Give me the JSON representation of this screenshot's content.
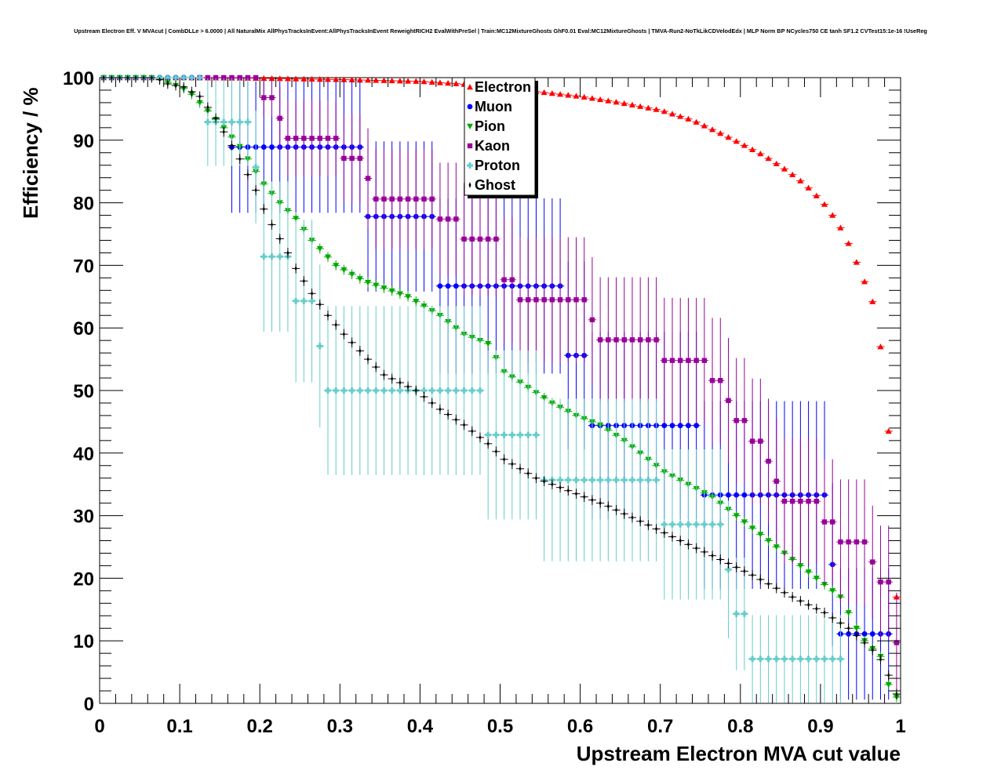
{
  "chart_data": {
    "type": "scatter",
    "title": "Upstream Electron Eff. V MVAcut | CombDLLe > 6.0000 | All NaturalMix AllPhysTracksInEvent:AllPhysTracksInEvent ReweightRICH2 EvalWithPreSel | Train:MC12MixtureGhosts GhF0.01 Eval:MC12MixtureGhosts | TMVA-Run2-NoTkLikCDVelodEdx | MLP Norm BP NCycles750 CE tanh SF1.2 CVTest15:1e-16 !UseReg",
    "xlabel": "Upstream Electron MVA cut value",
    "ylabel": "Efficiency / %",
    "xlim": [
      0,
      1
    ],
    "ylim": [
      0,
      100
    ],
    "xticks": [
      "0",
      "0.1",
      "0.2",
      "0.3",
      "0.4",
      "0.5",
      "0.6",
      "0.7",
      "0.8",
      "0.9",
      "1"
    ],
    "yticks": [
      "0",
      "10",
      "20",
      "30",
      "40",
      "50",
      "60",
      "70",
      "80",
      "90",
      "100"
    ],
    "legend_position": "top-center",
    "series": [
      {
        "name": "Electron",
        "color": "#ff0000",
        "marker": "triangle-up",
        "kind": "points",
        "err": 0.3,
        "points": [
          [
            0.005,
            100
          ],
          [
            0.1,
            100
          ],
          [
            0.2,
            99.9
          ],
          [
            0.3,
            99.7
          ],
          [
            0.4,
            99.4
          ],
          [
            0.45,
            99
          ],
          [
            0.5,
            98.3
          ],
          [
            0.55,
            97.7
          ],
          [
            0.6,
            97
          ],
          [
            0.65,
            96
          ],
          [
            0.7,
            94.8
          ],
          [
            0.74,
            93.2
          ],
          [
            0.78,
            90.8
          ],
          [
            0.8,
            89.5
          ],
          [
            0.83,
            87.5
          ],
          [
            0.86,
            85
          ],
          [
            0.88,
            83
          ],
          [
            0.9,
            80.5
          ],
          [
            0.91,
            79
          ],
          [
            0.92,
            77
          ],
          [
            0.93,
            75
          ],
          [
            0.94,
            72
          ],
          [
            0.95,
            69
          ],
          [
            0.965,
            64.2
          ],
          [
            0.975,
            57
          ],
          [
            0.985,
            43.5
          ],
          [
            0.995,
            17
          ]
        ]
      },
      {
        "name": "Muon",
        "color": "#0000ff",
        "marker": "circle",
        "kind": "steps",
        "steps": [
          [
            0.005,
            0.12,
            100,
            0.5
          ],
          [
            0.165,
            0.33,
            88.9,
            10.5
          ],
          [
            0.335,
            0.42,
            77.8,
            12
          ],
          [
            0.425,
            0.58,
            66.7,
            14
          ],
          [
            0.585,
            0.61,
            55.6,
            15
          ],
          [
            0.615,
            0.75,
            44.4,
            15
          ],
          [
            0.755,
            0.91,
            33.3,
            15
          ],
          [
            0.915,
            0.92,
            22.2,
            13
          ],
          [
            0.925,
            0.99,
            11.1,
            10.5
          ]
        ]
      },
      {
        "name": "Pion",
        "color": "#00aa00",
        "marker": "triangle-down",
        "kind": "points",
        "err": 0.8,
        "points": [
          [
            0.005,
            100
          ],
          [
            0.07,
            100
          ],
          [
            0.09,
            99
          ],
          [
            0.11,
            98
          ],
          [
            0.125,
            96
          ],
          [
            0.155,
            92
          ],
          [
            0.175,
            89
          ],
          [
            0.205,
            83
          ],
          [
            0.225,
            80
          ],
          [
            0.245,
            77.5
          ],
          [
            0.265,
            74
          ],
          [
            0.295,
            70
          ],
          [
            0.33,
            67.5
          ],
          [
            0.385,
            65
          ],
          [
            0.425,
            62
          ],
          [
            0.455,
            59
          ],
          [
            0.485,
            57.5
          ],
          [
            0.505,
            53
          ],
          [
            0.535,
            50.5
          ],
          [
            0.565,
            48
          ],
          [
            0.595,
            46
          ],
          [
            0.625,
            44.5
          ],
          [
            0.655,
            42
          ],
          [
            0.685,
            39
          ],
          [
            0.705,
            37
          ],
          [
            0.735,
            35
          ],
          [
            0.765,
            33
          ],
          [
            0.785,
            31
          ],
          [
            0.815,
            28
          ],
          [
            0.845,
            25
          ],
          [
            0.875,
            22
          ],
          [
            0.905,
            19
          ],
          [
            0.925,
            17
          ],
          [
            0.945,
            12
          ],
          [
            0.955,
            10
          ],
          [
            0.975,
            7.5
          ],
          [
            0.985,
            3
          ],
          [
            0.995,
            1
          ]
        ]
      },
      {
        "name": "Kaon",
        "color": "#990099",
        "marker": "square",
        "kind": "steps",
        "steps": [
          [
            0.125,
            0.195,
            100,
            0.5
          ],
          [
            0.205,
            0.215,
            96.8,
            3
          ],
          [
            0.225,
            0.225,
            93.5,
            5
          ],
          [
            0.235,
            0.295,
            90.3,
            6
          ],
          [
            0.305,
            0.325,
            87.1,
            7
          ],
          [
            0.335,
            0.335,
            83.9,
            8
          ],
          [
            0.345,
            0.415,
            80.6,
            8
          ],
          [
            0.425,
            0.445,
            77.4,
            9
          ],
          [
            0.455,
            0.495,
            74.2,
            9
          ],
          [
            0.505,
            0.515,
            67.7,
            10
          ],
          [
            0.525,
            0.605,
            64.5,
            10
          ],
          [
            0.615,
            0.615,
            61.3,
            10
          ],
          [
            0.625,
            0.695,
            58.1,
            10
          ],
          [
            0.705,
            0.755,
            54.8,
            10
          ],
          [
            0.765,
            0.775,
            51.6,
            10
          ],
          [
            0.785,
            0.785,
            48.4,
            10
          ],
          [
            0.795,
            0.805,
            45.2,
            10
          ],
          [
            0.815,
            0.825,
            41.9,
            10
          ],
          [
            0.835,
            0.835,
            38.7,
            10
          ],
          [
            0.845,
            0.845,
            35.5,
            10
          ],
          [
            0.855,
            0.895,
            32.3,
            10
          ],
          [
            0.905,
            0.915,
            29,
            10
          ],
          [
            0.925,
            0.955,
            25.8,
            10
          ],
          [
            0.965,
            0.965,
            22.6,
            9
          ],
          [
            0.975,
            0.985,
            19.4,
            9
          ],
          [
            0.995,
            0.995,
            9.7,
            8
          ]
        ]
      },
      {
        "name": "Proton",
        "color": "#66cccc",
        "marker": "cross",
        "kind": "steps",
        "steps": [
          [
            0.005,
            0.125,
            100,
            0.5
          ],
          [
            0.135,
            0.185,
            92.9,
            7
          ],
          [
            0.195,
            0.195,
            85.7,
            9
          ],
          [
            0.205,
            0.235,
            71.4,
            12
          ],
          [
            0.245,
            0.265,
            64.3,
            13
          ],
          [
            0.275,
            0.275,
            57.1,
            13
          ],
          [
            0.285,
            0.475,
            50,
            13.5
          ],
          [
            0.485,
            0.545,
            42.9,
            13.5
          ],
          [
            0.555,
            0.695,
            35.7,
            13
          ],
          [
            0.705,
            0.775,
            28.6,
            12
          ],
          [
            0.785,
            0.785,
            21.4,
            11
          ],
          [
            0.795,
            0.805,
            14.3,
            9
          ],
          [
            0.815,
            0.925,
            7.1,
            7
          ]
        ]
      },
      {
        "name": "Ghost",
        "color": "#000000",
        "marker": "star",
        "kind": "points",
        "err": 0.8,
        "points": [
          [
            0.005,
            100
          ],
          [
            0.07,
            100
          ],
          [
            0.085,
            99
          ],
          [
            0.105,
            98.5
          ],
          [
            0.125,
            97
          ],
          [
            0.145,
            93.5
          ],
          [
            0.175,
            87
          ],
          [
            0.195,
            82
          ],
          [
            0.205,
            79
          ],
          [
            0.215,
            76.5
          ],
          [
            0.235,
            72
          ],
          [
            0.245,
            69.5
          ],
          [
            0.265,
            65.5
          ],
          [
            0.285,
            62
          ],
          [
            0.305,
            59
          ],
          [
            0.335,
            55
          ],
          [
            0.355,
            52.5
          ],
          [
            0.395,
            50
          ],
          [
            0.425,
            47
          ],
          [
            0.455,
            44.5
          ],
          [
            0.485,
            41.5
          ],
          [
            0.505,
            39
          ],
          [
            0.545,
            36
          ],
          [
            0.585,
            34
          ],
          [
            0.635,
            31.5
          ],
          [
            0.685,
            28.5
          ],
          [
            0.725,
            26
          ],
          [
            0.775,
            23
          ],
          [
            0.815,
            20.5
          ],
          [
            0.865,
            17
          ],
          [
            0.905,
            14.5
          ],
          [
            0.935,
            12
          ],
          [
            0.965,
            8.5
          ],
          [
            0.975,
            7
          ],
          [
            0.985,
            4.5
          ],
          [
            0.995,
            1.5
          ]
        ]
      }
    ]
  }
}
